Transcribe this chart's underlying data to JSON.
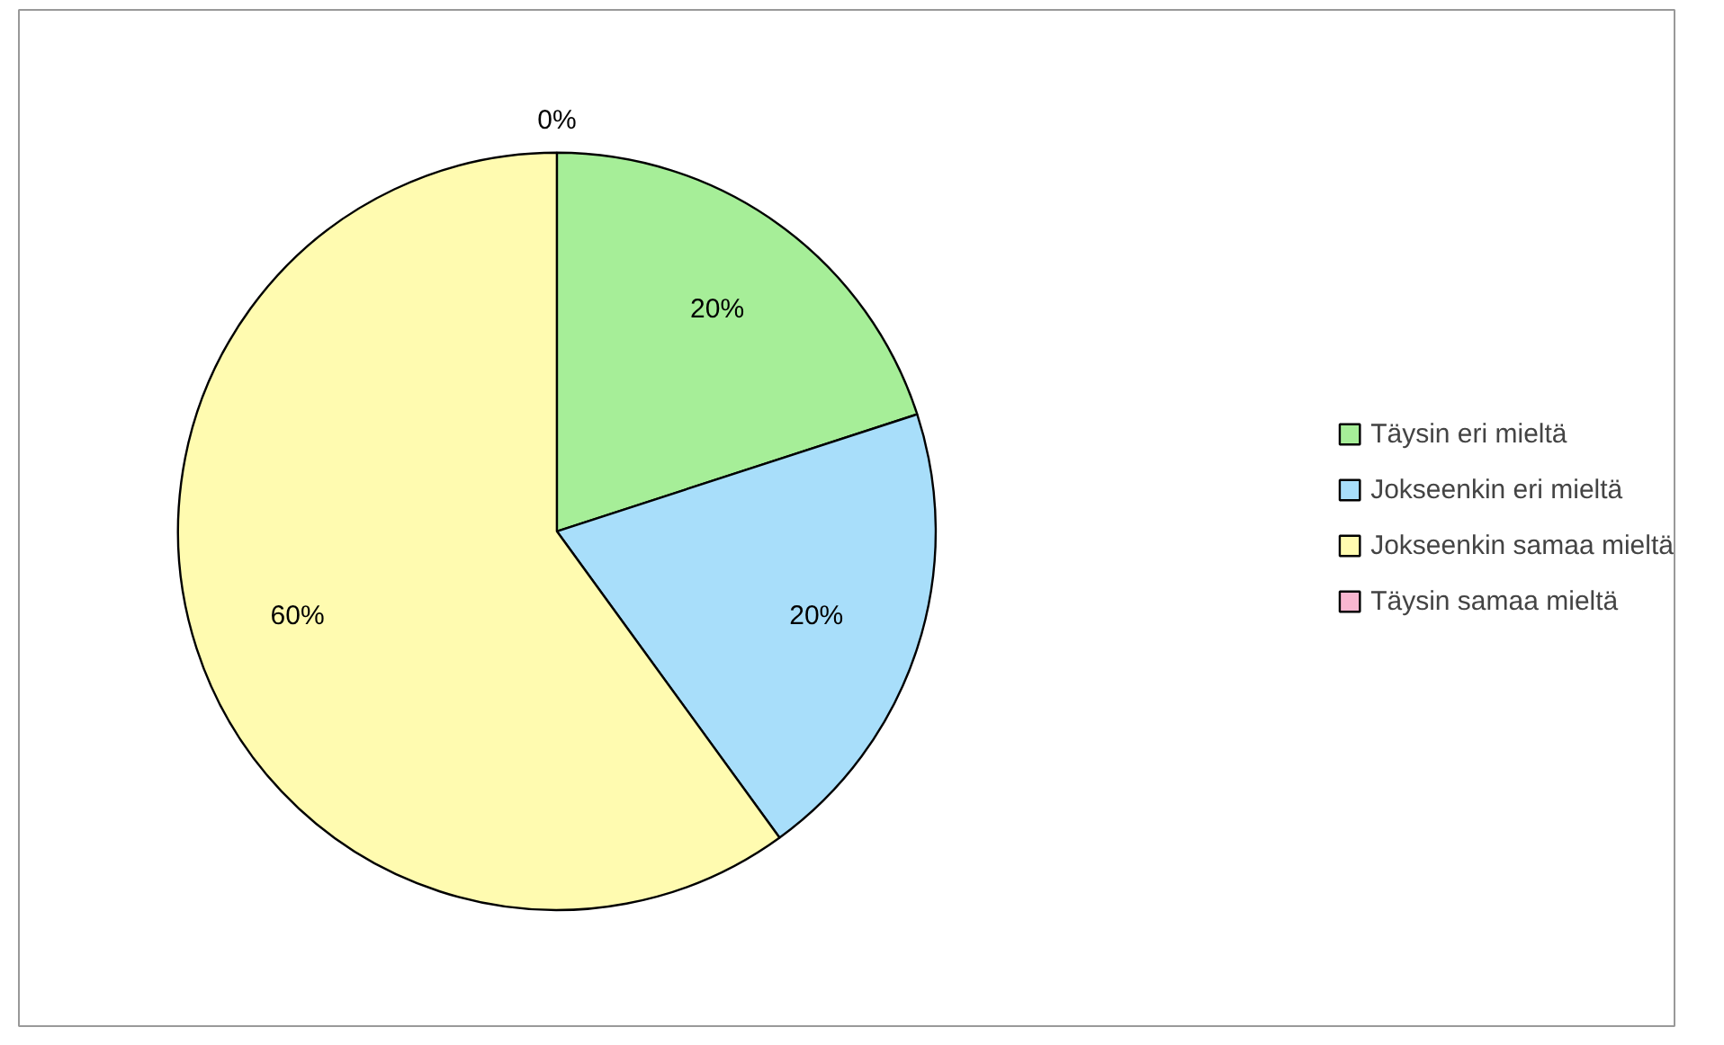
{
  "chart_data": {
    "type": "pie",
    "categories": [
      "Täysin eri mieltä",
      "Jokseenkin eri mieltä",
      "Jokseenkin samaa mieltä",
      "Täysin samaa mieltä"
    ],
    "values": [
      20,
      20,
      60,
      0
    ],
    "colors": [
      "#a6ee98",
      "#a8defa",
      "#fffbb0",
      "#f9b6d0"
    ],
    "value_labels": [
      "20%",
      "20%",
      "60%",
      "0%"
    ],
    "legend": "right"
  }
}
